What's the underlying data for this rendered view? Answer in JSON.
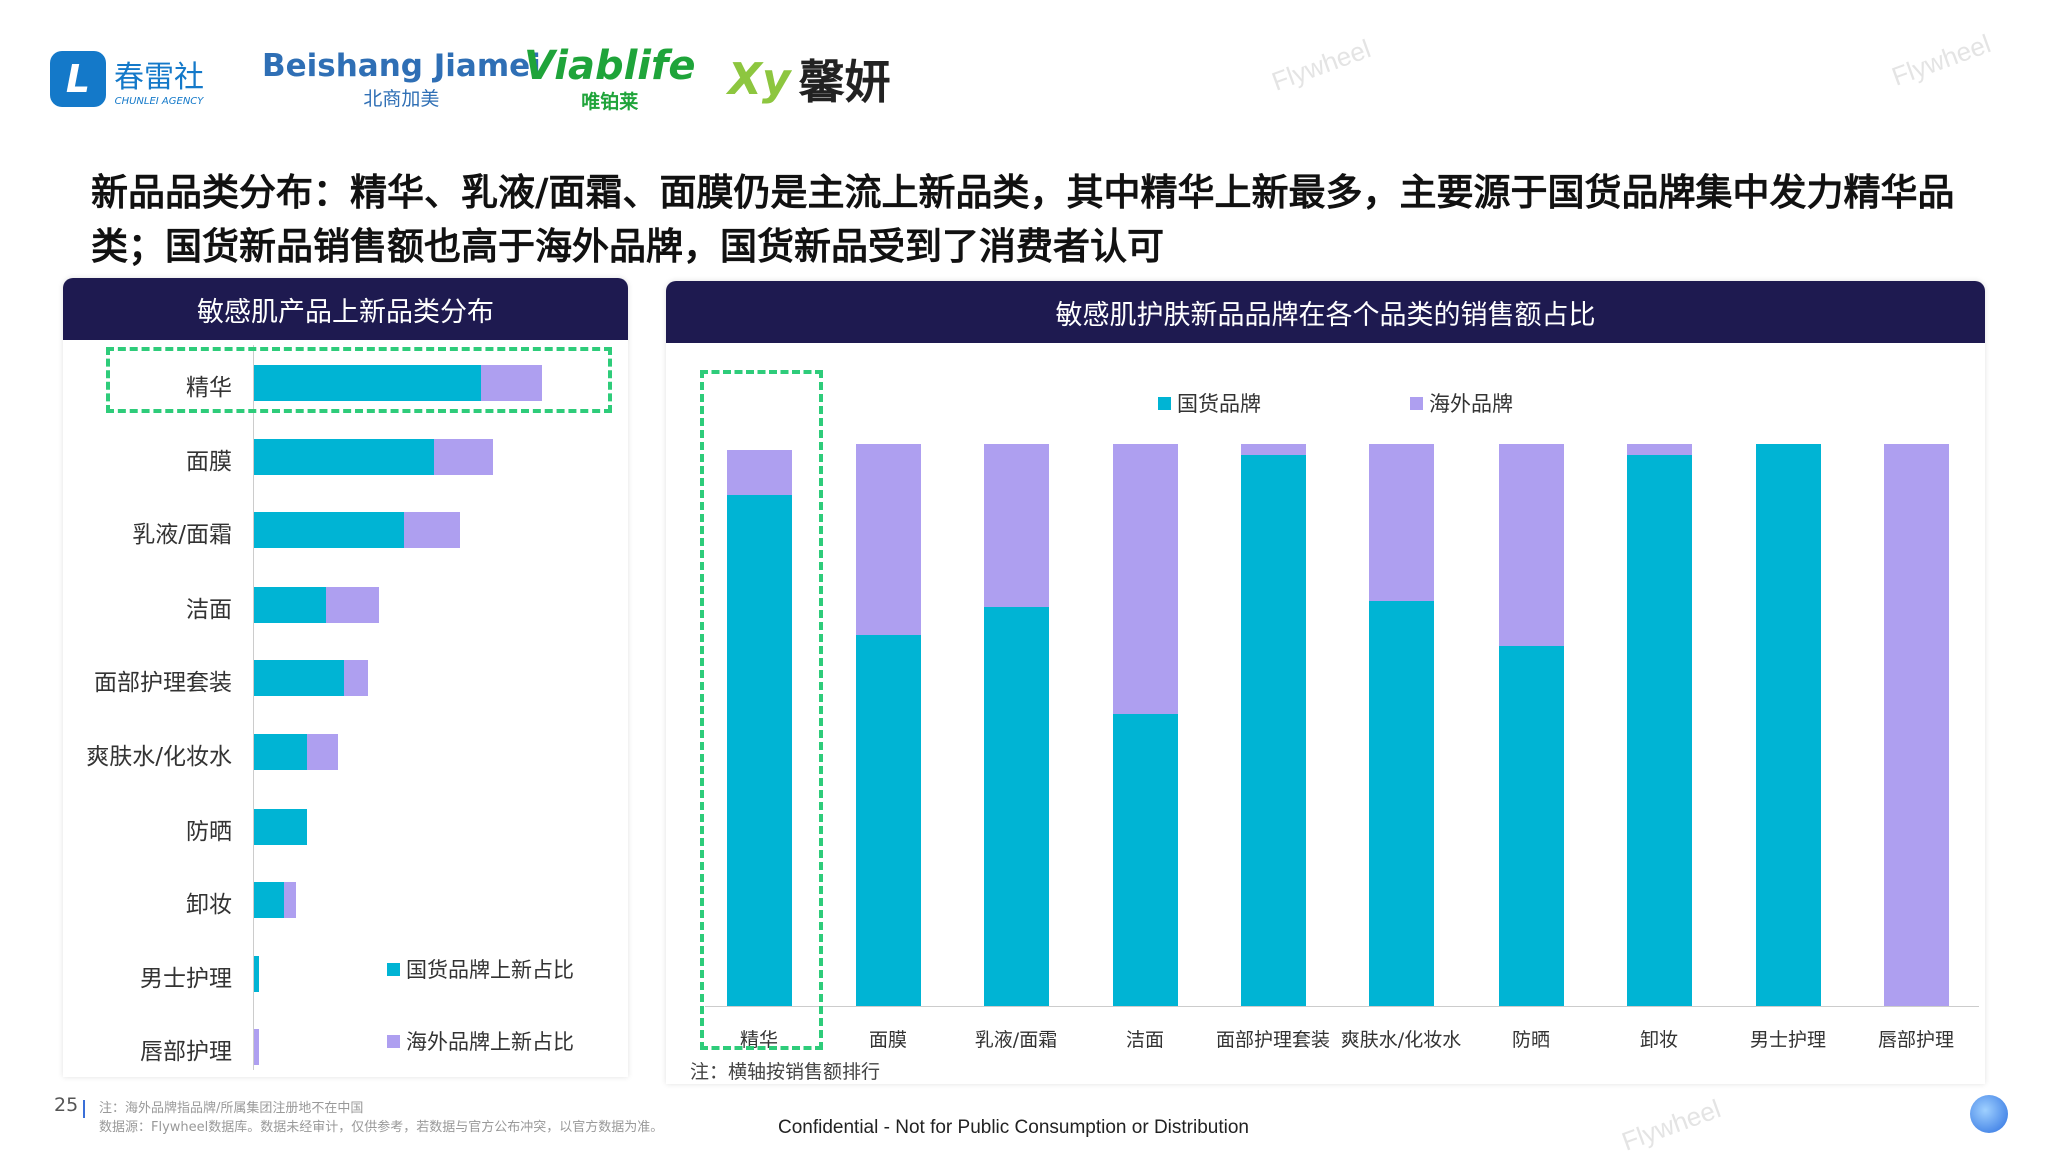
{
  "logos": {
    "chunlei": "春雷社",
    "chunlei_sub": "CHUNLEI AGENCY",
    "beishang": "Beishang Jiamei",
    "beishang_sub": "北商加美",
    "viablife": "Viablife",
    "viablife_sub": "唯铂莱",
    "xinyan": "馨妍",
    "xinyan_mark": "Xy"
  },
  "watermark": "Flywheel",
  "title": "新品品类分布：精华、乳液/面霜、面膜仍是主流上新品类，其中精华上新最多，主要源于国货品牌集中发力精华品类；国货新品销售额也高于海外品牌，国货新品受到了消费者认可",
  "colors": {
    "domestic": "#00b4d4",
    "overseas": "#ae9ff0",
    "header": "#1e1a50",
    "highlight": "#2ecc7a"
  },
  "chart_data": [
    {
      "type": "bar",
      "orientation": "horizontal",
      "stacked": true,
      "title": "敏感肌产品上新品类分布",
      "unit": "%",
      "categories": [
        "精华",
        "面膜",
        "乳液/面霜",
        "洁面",
        "面部护理套装",
        "爽肤水/化妆水",
        "防晒",
        "卸妆",
        "男士护理",
        "唇部护理"
      ],
      "series": [
        {
          "name": "国货品牌上新占比",
          "values": [
            19.6,
            15.5,
            12.9,
            6.2,
            7.8,
            4.6,
            4.6,
            2.6,
            0.4,
            0
          ]
        },
        {
          "name": "海外品牌上新占比",
          "values": [
            5.2,
            5.1,
            4.9,
            4.6,
            2.0,
            2.6,
            0,
            1.0,
            0,
            0.4
          ]
        }
      ],
      "highlight": "精华",
      "legend": "bottom-right"
    },
    {
      "type": "bar",
      "orientation": "vertical",
      "stacked": true,
      "title": "敏感肌护肤新品品牌在各个品类的销售额占比",
      "unit": "%",
      "ylim": [
        0,
        100
      ],
      "categories": [
        "精华",
        "面膜",
        "乳液/面霜",
        "洁面",
        "面部护理套装",
        "爽肤水/化妆水",
        "防晒",
        "卸妆",
        "男士护理",
        "唇部护理"
      ],
      "series": [
        {
          "name": "国货品牌",
          "values": [
            91,
            66,
            71,
            52,
            98,
            72,
            64,
            98,
            100,
            0
          ]
        },
        {
          "name": "海外品牌",
          "values": [
            8,
            34,
            29,
            48,
            2,
            28,
            36,
            2,
            0,
            100
          ]
        }
      ],
      "highlight": "精华",
      "legend": "top",
      "note": "注：横轴按销售额排行"
    }
  ],
  "footer": {
    "page": "25",
    "note1": "注：海外品牌指品牌/所属集团注册地不在中国",
    "note2": "数据源：Flywheel数据库。数据未经审计，仅供参考，若数据与官方公布冲突，以官方数据为准。",
    "confidential": "Confidential - Not for Public Consumption or Distribution"
  }
}
